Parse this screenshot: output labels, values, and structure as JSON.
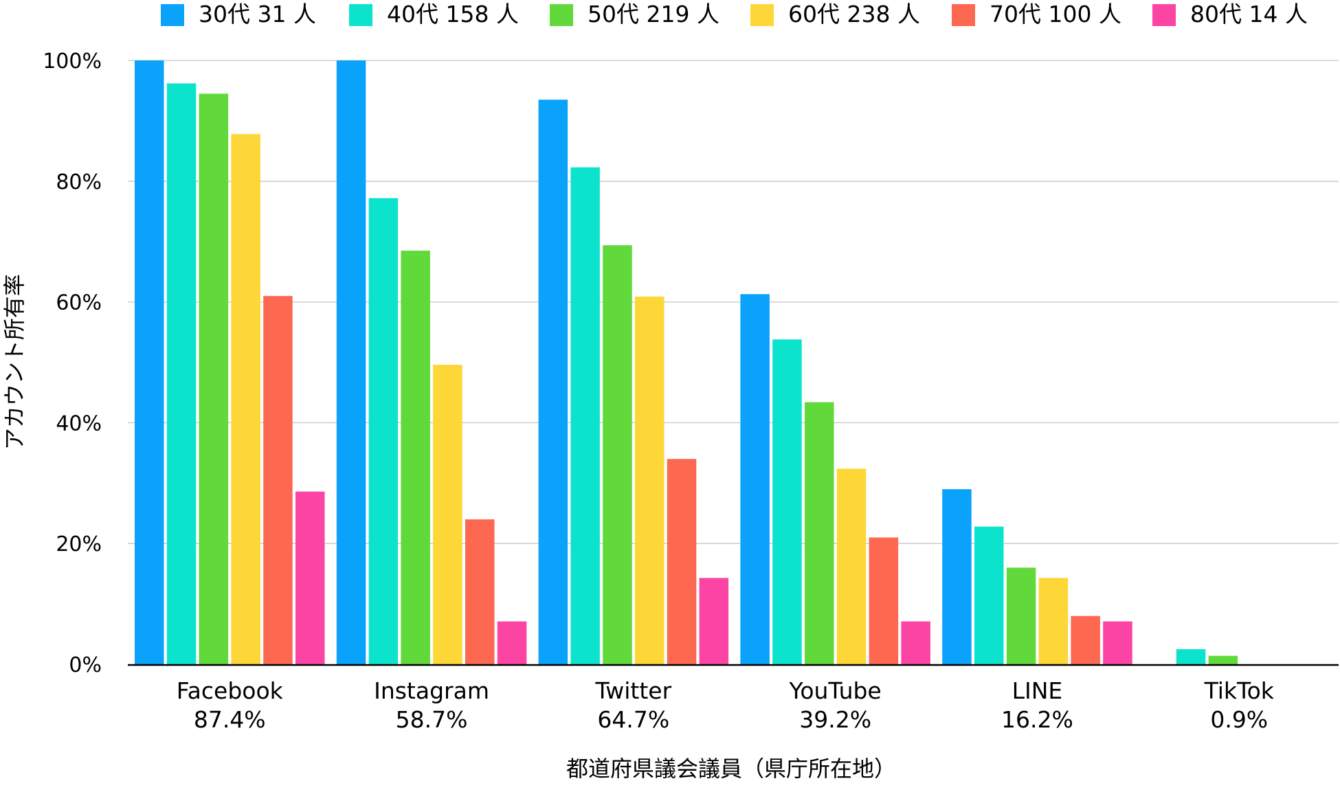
{
  "chart_data": {
    "type": "bar",
    "title": "",
    "xlabel": "都道府県議会議員（県庁所在地）",
    "ylabel": "アカウント所有率",
    "ylim": [
      0,
      100
    ],
    "yticks": [
      0,
      20,
      40,
      60,
      80,
      100
    ],
    "ytick_suffix": "%",
    "grid": true,
    "legend_position": "top",
    "categories": [
      "Facebook",
      "Instagram",
      "Twitter",
      "YouTube",
      "LINE",
      "TikTok"
    ],
    "category_totals": [
      "87.4%",
      "58.7%",
      "64.7%",
      "39.2%",
      "16.2%",
      "0.9%"
    ],
    "series": [
      {
        "name": "30代 31 人",
        "color": "#0aa2fb",
        "values": [
          100,
          100,
          93.5,
          61.3,
          29.0,
          0
        ]
      },
      {
        "name": "40代 158 人",
        "color": "#0ce3cd",
        "values": [
          96.2,
          77.2,
          82.3,
          53.8,
          22.8,
          2.5
        ]
      },
      {
        "name": "50代 219 人",
        "color": "#62d93a",
        "values": [
          94.5,
          68.5,
          69.4,
          43.4,
          16.0,
          1.4
        ]
      },
      {
        "name": "60代 238 人",
        "color": "#fdd737",
        "values": [
          87.8,
          49.6,
          60.9,
          32.4,
          14.3,
          0
        ]
      },
      {
        "name": "70代 100 人",
        "color": "#fd6850",
        "values": [
          61.0,
          24.0,
          34.0,
          21.0,
          8.0,
          0
        ]
      },
      {
        "name": "80代 14 人",
        "color": "#fc44a5",
        "values": [
          28.6,
          7.1,
          14.3,
          7.1,
          7.1,
          0
        ]
      }
    ]
  }
}
